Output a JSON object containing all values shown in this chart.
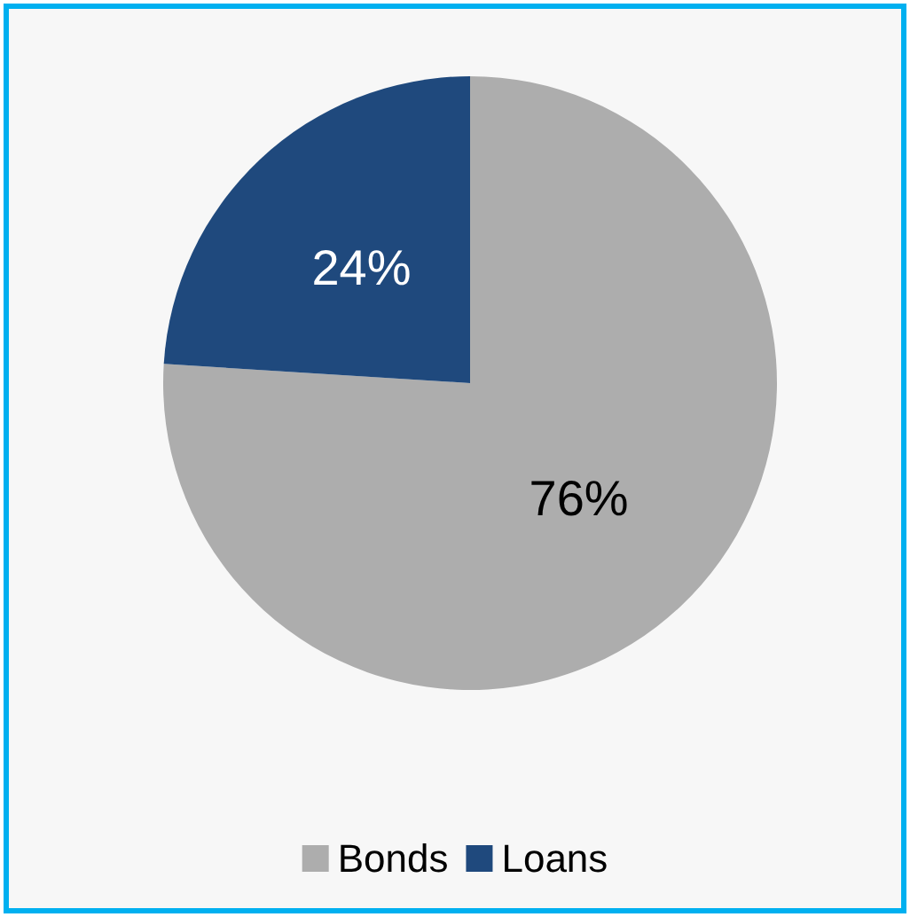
{
  "chart_data": {
    "type": "pie",
    "categories": [
      "Bonds",
      "Loans"
    ],
    "values": [
      76,
      24
    ],
    "colors": [
      "#adadad",
      "#1f497d"
    ],
    "value_labels": [
      "76%",
      "24%"
    ],
    "legend": "bottom"
  }
}
